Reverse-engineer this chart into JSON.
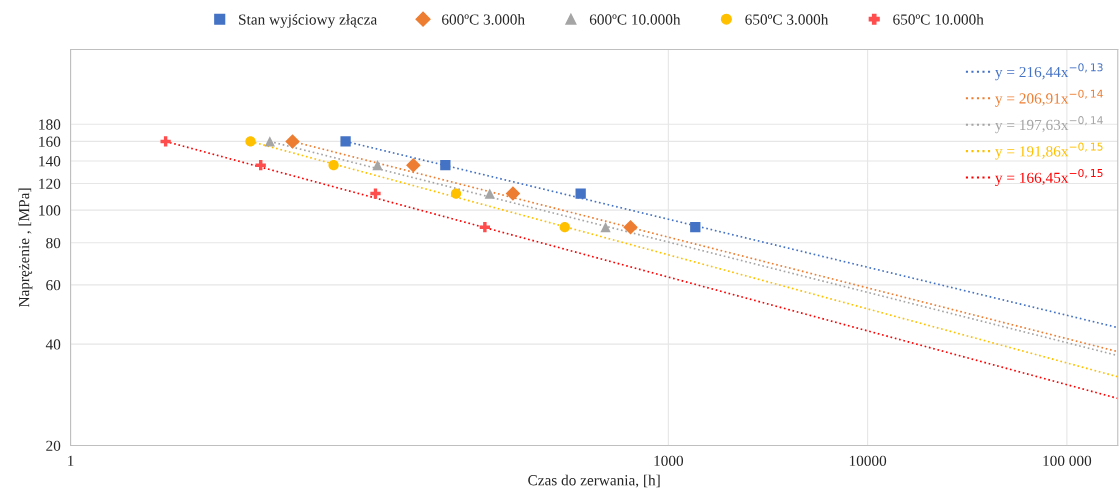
{
  "chart_data": {
    "type": "scatter",
    "xlabel": "Czas do zerwania, [h]",
    "ylabel": "Naprężenie , [MPa]",
    "log": "xy",
    "grid": true,
    "legend": "top",
    "xlim": [
      1,
      180000
    ],
    "xticks": [
      1,
      1000,
      10000,
      {
        "value": 100000,
        "label": "100 000"
      }
    ],
    "ylim": [
      20,
      300
    ],
    "yticks": [
      20,
      40,
      60,
      80,
      100,
      120,
      140,
      160,
      180
    ],
    "series": [
      {
        "name": "Stan wyjściowy złącza",
        "color": "#4472c4",
        "marker": "square",
        "x": [
          24,
          76,
          363,
          1365
        ],
        "values": [
          160,
          136,
          112,
          89
        ]
      },
      {
        "name": "600ºC 3.000h",
        "color": "#ed7d31",
        "marker": "diamond",
        "x": [
          13,
          52.5,
          166,
          646
        ],
        "values": [
          160,
          136,
          112,
          89
        ]
      },
      {
        "name": "600ºC 10.000h",
        "color": "#a5a5a5",
        "marker": "triangle",
        "x": [
          10,
          34.7,
          127,
          484
        ],
        "values": [
          160,
          136,
          112,
          89
        ]
      },
      {
        "name": "650ºC 3.000h",
        "color": "#ffc000",
        "marker": "circle",
        "x": [
          8,
          20.9,
          86,
          302
        ],
        "values": [
          160,
          136,
          112,
          89
        ]
      },
      {
        "name": "650ºC 10.000h",
        "color": "#ff4d4d",
        "marker": "cross",
        "x": [
          3,
          9,
          33.9,
          120
        ],
        "values": [
          160,
          136,
          112,
          89
        ]
      },
      {
        "type": "line",
        "line_style": "dotted",
        "name": "y = 216,44x$^{−0,13}$",
        "color": "#4472c4",
        "x": [
          24,
          180000
        ],
        "values": [
          160,
          44.8
        ]
      },
      {
        "type": "line",
        "line_style": "dotted",
        "name": "y = 206,91x$^{−0,14}$",
        "color": "#ed7d31",
        "x": [
          13,
          180000
        ],
        "values": [
          160,
          38
        ]
      },
      {
        "type": "line",
        "line_style": "dotted",
        "name": "y = 197,63x$^{−0,14}$",
        "color": "#a5a5a5",
        "x": [
          10,
          180000
        ],
        "values": [
          160,
          37
        ]
      },
      {
        "type": "line",
        "line_style": "dotted",
        "name": "y = 191,86x$^{−0,15}$",
        "color": "#ffc000",
        "x": [
          8,
          180000
        ],
        "values": [
          160,
          32
        ]
      },
      {
        "type": "line",
        "line_style": "dotted",
        "name": "y = 166,45x$^{−0,15}$",
        "color": "#ff0000",
        "x": [
          3,
          180000
        ],
        "values": [
          160,
          27.6
        ]
      }
    ]
  }
}
